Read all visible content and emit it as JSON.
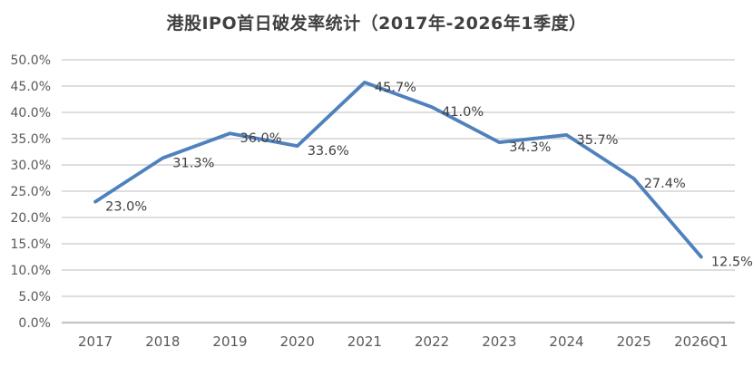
{
  "chart_data": {
    "type": "line",
    "title": "港股IPO首日破发率统计（2017年-2026年1季度）",
    "categories": [
      "2017",
      "2018",
      "2019",
      "2020",
      "2021",
      "2022",
      "2023",
      "2024",
      "2025",
      "2026Q1"
    ],
    "series": [
      {
        "name": "首日破发率",
        "values": [
          23.0,
          31.3,
          36.0,
          33.6,
          45.7,
          41.0,
          34.3,
          35.7,
          27.4,
          12.5
        ],
        "data_labels": [
          "23.0%",
          "31.3%",
          "36.0%",
          "33.6%",
          "45.7%",
          "41.0%",
          "34.3%",
          "35.7%",
          "27.4%",
          "12.5%"
        ]
      }
    ],
    "xlabel": "",
    "ylabel": "",
    "ylim": [
      0,
      50
    ],
    "ytick_step": 5,
    "yticks": [
      "0.0%",
      "5.0%",
      "10.0%",
      "15.0%",
      "20.0%",
      "25.0%",
      "30.0%",
      "35.0%",
      "40.0%",
      "45.0%",
      "50.0%"
    ],
    "grid": true,
    "legend_position": "none",
    "colors": {
      "line": "#4F81BD",
      "gridline": "#D9D9D9",
      "axis_line": "#C4C4C4",
      "tick_text": "#595959",
      "data_label_text": "#404040",
      "title_text": "#404040",
      "background": "#FFFFFF"
    }
  }
}
